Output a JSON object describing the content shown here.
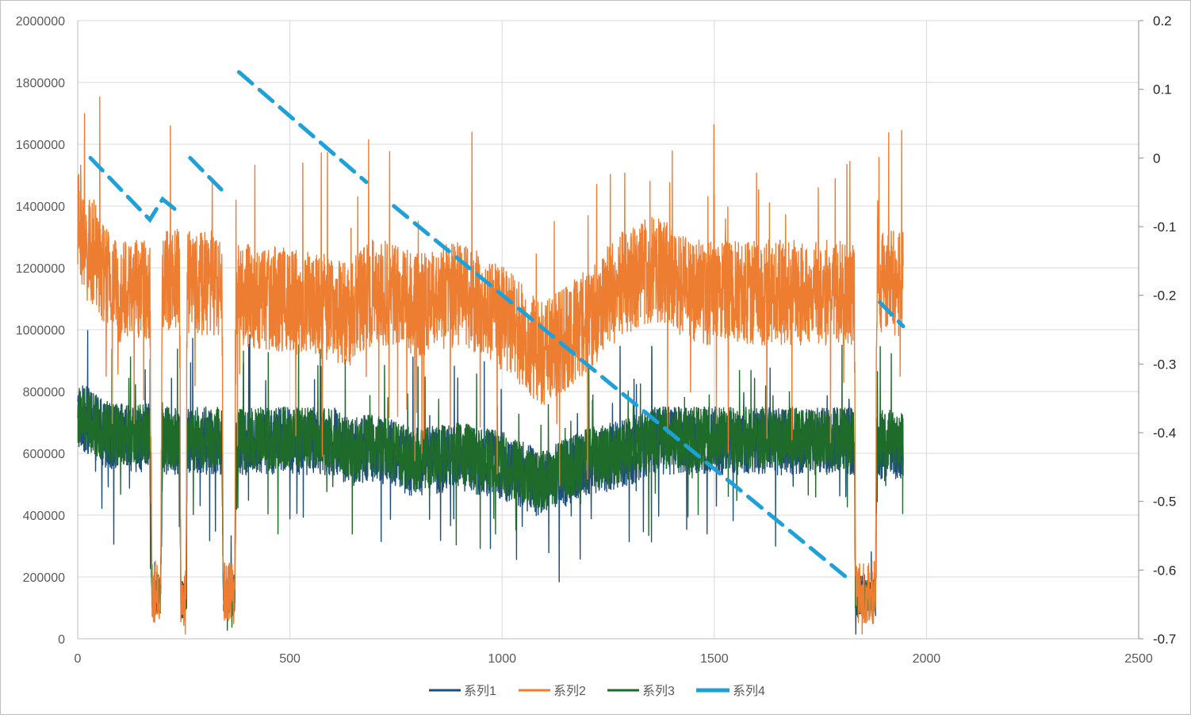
{
  "chart_data": {
    "type": "line",
    "title": "",
    "xlabel": "",
    "ylabel": "",
    "xlim": [
      0,
      2500
    ],
    "ylim": [
      0,
      2000000
    ],
    "y2lim": [
      -0.7,
      0.2
    ],
    "x_ticks": [
      "0",
      "500",
      "1000",
      "1500",
      "2000",
      "2500"
    ],
    "y_ticks": [
      "0",
      "200000",
      "400000",
      "600000",
      "800000",
      "1000000",
      "1200000",
      "1400000",
      "1600000",
      "1800000",
      "2000000"
    ],
    "y2_ticks": [
      "-0.7",
      "-0.6",
      "-0.5",
      "-0.4",
      "-0.3",
      "-0.2",
      "-0.1",
      "0",
      "0.1",
      "0.2"
    ],
    "grid": true,
    "legend_position": "bottom",
    "series": [
      {
        "name": "系列1",
        "color": "#1f4e79",
        "axis": "left",
        "style": "noisy",
        "base": [
          [
            0,
            720000
          ],
          [
            30,
            700000
          ],
          [
            80,
            650000
          ],
          [
            170,
            650000
          ],
          [
            175,
            150000
          ],
          [
            195,
            150000
          ],
          [
            200,
            640000
          ],
          [
            240,
            640000
          ],
          [
            243,
            120000
          ],
          [
            255,
            120000
          ],
          [
            258,
            640000
          ],
          [
            340,
            640000
          ],
          [
            343,
            140000
          ],
          [
            370,
            140000
          ],
          [
            373,
            640000
          ],
          [
            610,
            640000
          ],
          [
            640,
            600000
          ],
          [
            700,
            620000
          ],
          [
            790,
            570000
          ],
          [
            900,
            590000
          ],
          [
            1000,
            560000
          ],
          [
            1090,
            500000
          ],
          [
            1200,
            570000
          ],
          [
            1290,
            600000
          ],
          [
            1360,
            640000
          ],
          [
            1500,
            640000
          ],
          [
            1830,
            640000
          ],
          [
            1833,
            140000
          ],
          [
            1880,
            140000
          ],
          [
            1883,
            620000
          ],
          [
            1945,
            620000
          ]
        ],
        "noise_amplitude": 110000
      },
      {
        "name": "系列2",
        "color": "#ed7d31",
        "axis": "left",
        "style": "noisy",
        "base": [
          [
            0,
            1350000
          ],
          [
            20,
            1250000
          ],
          [
            40,
            1250000
          ],
          [
            80,
            1130000
          ],
          [
            170,
            1130000
          ],
          [
            175,
            150000
          ],
          [
            195,
            150000
          ],
          [
            200,
            1160000
          ],
          [
            240,
            1160000
          ],
          [
            243,
            130000
          ],
          [
            255,
            130000
          ],
          [
            258,
            1150000
          ],
          [
            340,
            1150000
          ],
          [
            343,
            150000
          ],
          [
            370,
            150000
          ],
          [
            373,
            1120000
          ],
          [
            600,
            1070000
          ],
          [
            640,
            1050000
          ],
          [
            700,
            1130000
          ],
          [
            800,
            1080000
          ],
          [
            900,
            1120000
          ],
          [
            1000,
            1040000
          ],
          [
            1090,
            920000
          ],
          [
            1180,
            1000000
          ],
          [
            1280,
            1150000
          ],
          [
            1360,
            1200000
          ],
          [
            1460,
            1120000
          ],
          [
            1600,
            1120000
          ],
          [
            1830,
            1120000
          ],
          [
            1833,
            150000
          ],
          [
            1880,
            150000
          ],
          [
            1883,
            1150000
          ],
          [
            1945,
            1150000
          ]
        ],
        "noise_amplitude": 170000
      },
      {
        "name": "系列3",
        "color": "#1e6b2a",
        "axis": "left",
        "style": "noisy",
        "base": [
          [
            0,
            720000
          ],
          [
            30,
            700000
          ],
          [
            80,
            660000
          ],
          [
            170,
            660000
          ],
          [
            175,
            140000
          ],
          [
            195,
            140000
          ],
          [
            200,
            650000
          ],
          [
            240,
            650000
          ],
          [
            243,
            130000
          ],
          [
            255,
            130000
          ],
          [
            258,
            650000
          ],
          [
            340,
            650000
          ],
          [
            343,
            140000
          ],
          [
            370,
            140000
          ],
          [
            373,
            650000
          ],
          [
            610,
            650000
          ],
          [
            640,
            610000
          ],
          [
            700,
            630000
          ],
          [
            790,
            580000
          ],
          [
            900,
            600000
          ],
          [
            1000,
            570000
          ],
          [
            1090,
            510000
          ],
          [
            1200,
            580000
          ],
          [
            1290,
            610000
          ],
          [
            1360,
            650000
          ],
          [
            1500,
            650000
          ],
          [
            1830,
            650000
          ],
          [
            1833,
            130000
          ],
          [
            1880,
            130000
          ],
          [
            1883,
            640000
          ],
          [
            1945,
            640000
          ]
        ],
        "noise_amplitude": 100000
      },
      {
        "name": "系列4",
        "color": "#1ea1d9",
        "axis": "right",
        "style": "dashed",
        "segments": [
          [
            [
              30,
              0.0
            ],
            [
              170,
              -0.09
            ],
            [
              200,
              -0.06
            ],
            [
              240,
              -0.08
            ]
          ],
          [
            [
              265,
              0.0
            ],
            [
              345,
              -0.05
            ]
          ],
          [
            [
              380,
              0.125
            ],
            [
              680,
              -0.035
            ]
          ],
          [
            [
              745,
              -0.07
            ],
            [
              1820,
              -0.615
            ]
          ],
          [
            [
              1890,
              -0.21
            ],
            [
              1945,
              -0.245
            ]
          ]
        ]
      }
    ]
  }
}
